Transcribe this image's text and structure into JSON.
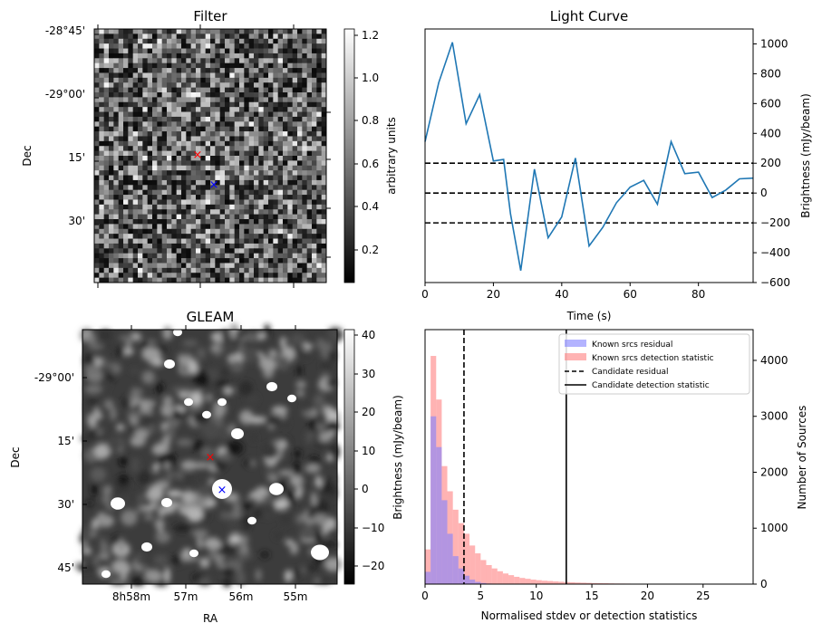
{
  "panels": {
    "filter": {
      "title": "Filter",
      "ylabel": "Dec",
      "yticks": [
        "-28°45'",
        "-29°00'",
        "15'",
        "30'"
      ],
      "colorbar_label": "arbitrary units",
      "colorbar_ticks": [
        "1.2",
        "1.0",
        "0.8",
        "0.6",
        "0.4",
        "0.2"
      ],
      "red_marker": "×",
      "blue_marker": "×"
    },
    "gleam": {
      "title": "GLEAM",
      "ylabel": "Dec",
      "xlabel": "RA",
      "yticks": [
        "-29°00'",
        "15'",
        "30'",
        "45'"
      ],
      "xticks": [
        "8h58m",
        "57m",
        "56m",
        "55m"
      ],
      "colorbar_label": "Brightness (mJy/beam)",
      "colorbar_ticks": [
        "40",
        "30",
        "20",
        "10",
        "0",
        "−10",
        "−20"
      ],
      "red_marker": "×",
      "blue_marker": "×"
    }
  },
  "chart_data": [
    {
      "type": "line",
      "title": "Light Curve",
      "xlabel": "Time (s)",
      "ylabel": "Brightness (mJy/beam)",
      "xlim": [
        0,
        96
      ],
      "ylim": [
        -600,
        1100
      ],
      "xticks": [
        "0",
        "20",
        "40",
        "60",
        "80"
      ],
      "yticks": [
        "1000",
        "800",
        "600",
        "400",
        "200",
        "0",
        "−200",
        "−400",
        "−600"
      ],
      "hlines": [
        200,
        0,
        -200
      ],
      "x": [
        0,
        4,
        8,
        12,
        16,
        20,
        23,
        25,
        28,
        32,
        36,
        40,
        44,
        48,
        52,
        56,
        60,
        64,
        68,
        72,
        76,
        80,
        84,
        88,
        92,
        96
      ],
      "y": [
        345,
        740,
        1010,
        465,
        660,
        215,
        225,
        -140,
        -520,
        160,
        -300,
        -160,
        235,
        -355,
        -230,
        -65,
        40,
        85,
        -75,
        345,
        130,
        140,
        -30,
        20,
        95,
        100
      ]
    },
    {
      "type": "bar",
      "xlabel": "Normalised stdev or detection statistics",
      "ylabel": "Number of Sources",
      "xlim": [
        0,
        29.5
      ],
      "ylim": [
        0,
        4550
      ],
      "xticks": [
        "0",
        "5",
        "10",
        "15",
        "20",
        "25"
      ],
      "yticks": [
        "4000",
        "3000",
        "2000",
        "1000",
        "0"
      ],
      "bin_width": 0.5,
      "series": [
        {
          "name": "Known srcs residual",
          "color": "#8080ff",
          "values": [
            220,
            3000,
            2450,
            1500,
            900,
            500,
            280,
            150,
            80,
            40,
            20,
            10,
            5
          ]
        },
        {
          "name": "Known srcs detection statistic",
          "color": "#ff8080",
          "values": [
            620,
            4080,
            3300,
            2110,
            1660,
            1330,
            1090,
            900,
            690,
            550,
            430,
            340,
            280,
            230,
            190,
            160,
            130,
            110,
            95,
            80,
            70,
            60,
            55,
            48,
            42,
            37,
            32,
            28,
            25,
            22,
            19,
            17,
            15,
            13,
            11,
            10,
            9,
            8,
            7,
            6
          ]
        }
      ],
      "vlines": [
        {
          "name": "Candidate residual",
          "x": 3.5,
          "style": "dashed"
        },
        {
          "name": "Candidate detection statistic",
          "x": 12.7,
          "style": "solid"
        }
      ]
    }
  ]
}
